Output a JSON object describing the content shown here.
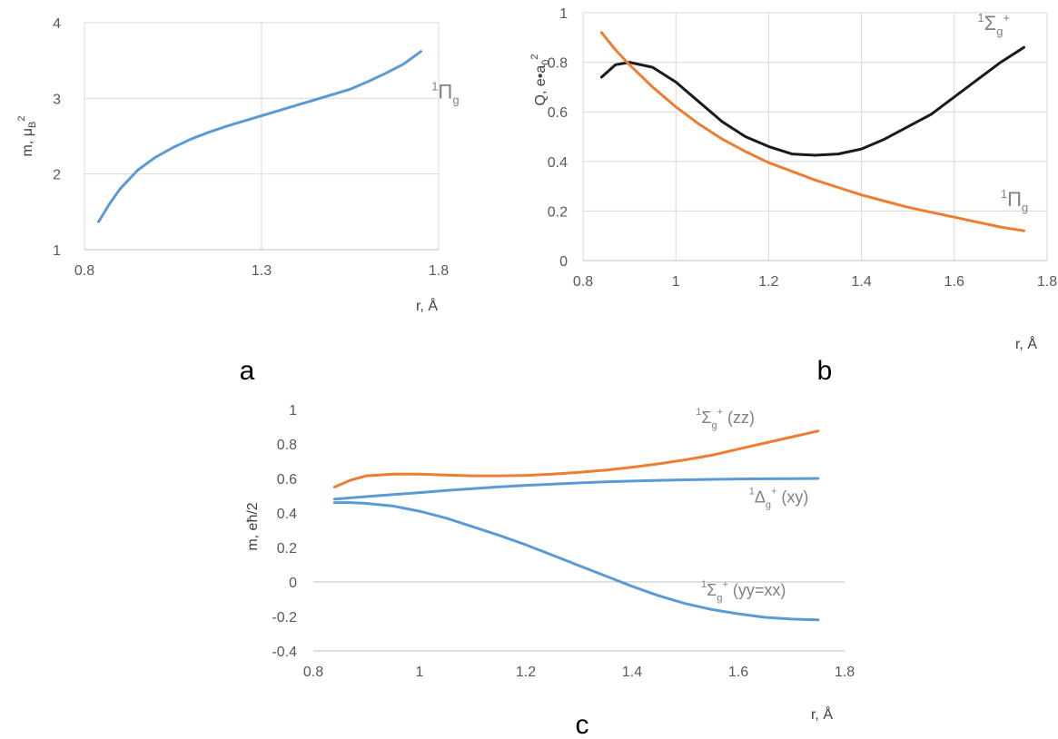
{
  "colors": {
    "blue": "#5b9bd5",
    "orange": "#ed7d31",
    "black": "#1a1a1a",
    "grid": "#d9d9d9",
    "annotation": "#808080"
  },
  "chart_data": [
    {
      "type": "line",
      "panel_label": "a",
      "xlabel": "r, Å",
      "ylabel": "m, μB2",
      "ylabel_parts": {
        "base": "m, μ",
        "sub": "B",
        "sup": "2"
      },
      "xlim": [
        0.8,
        1.8
      ],
      "ylim": [
        1,
        4
      ],
      "xticks": [
        0.8,
        1.3,
        1.8
      ],
      "xtick_labels": [
        "0.8",
        "1.3",
        "1.8"
      ],
      "yticks": [
        1,
        2,
        3,
        4
      ],
      "ytick_labels": [
        "1",
        "2",
        "3",
        "4"
      ],
      "grid": true,
      "series": [
        {
          "name": "1Πg",
          "color": "#5b9bd5",
          "x": [
            0.84,
            0.87,
            0.9,
            0.95,
            1.0,
            1.05,
            1.1,
            1.15,
            1.2,
            1.25,
            1.3,
            1.35,
            1.4,
            1.45,
            1.5,
            1.55,
            1.6,
            1.65,
            1.7,
            1.75
          ],
          "y": [
            1.37,
            1.6,
            1.8,
            2.05,
            2.22,
            2.35,
            2.46,
            2.55,
            2.63,
            2.7,
            2.77,
            2.84,
            2.91,
            2.98,
            3.05,
            3.12,
            3.22,
            3.33,
            3.45,
            3.62
          ]
        }
      ],
      "annotations": [
        {
          "base": "Π",
          "sup": "1",
          "sub": "g",
          "x": 1.78,
          "y": 3.0,
          "series": 0
        }
      ]
    },
    {
      "type": "line",
      "panel_label": "b",
      "xlabel": "r, Å",
      "ylabel": "Q, e•a02",
      "ylabel_parts": {
        "base": "Q, e•a",
        "sub": "0",
        "sup": "2"
      },
      "xlim": [
        0.8,
        1.8
      ],
      "ylim": [
        0,
        1
      ],
      "xticks": [
        0.8,
        1.0,
        1.2,
        1.4,
        1.6,
        1.8
      ],
      "xtick_labels": [
        "0.8",
        "1",
        "1.2",
        "1.4",
        "1.6",
        "1.8"
      ],
      "yticks": [
        0,
        0.2,
        0.4,
        0.6,
        0.8,
        1.0
      ],
      "ytick_labels": [
        "0",
        "0.2",
        "0.4",
        "0.6",
        "0.8",
        "1"
      ],
      "grid": true,
      "series": [
        {
          "name": "1Σg+",
          "color": "#1a1a1a",
          "x": [
            0.84,
            0.87,
            0.9,
            0.95,
            1.0,
            1.05,
            1.1,
            1.15,
            1.2,
            1.25,
            1.3,
            1.35,
            1.4,
            1.45,
            1.5,
            1.55,
            1.6,
            1.65,
            1.7,
            1.75
          ],
          "y": [
            0.74,
            0.79,
            0.8,
            0.78,
            0.72,
            0.64,
            0.56,
            0.5,
            0.46,
            0.43,
            0.425,
            0.43,
            0.45,
            0.49,
            0.54,
            0.59,
            0.66,
            0.73,
            0.8,
            0.86
          ]
        },
        {
          "name": "1Πg",
          "color": "#ed7d31",
          "x": [
            0.84,
            0.87,
            0.9,
            0.95,
            1.0,
            1.05,
            1.1,
            1.15,
            1.2,
            1.25,
            1.3,
            1.35,
            1.4,
            1.45,
            1.5,
            1.55,
            1.6,
            1.65,
            1.7,
            1.75
          ],
          "y": [
            0.92,
            0.85,
            0.79,
            0.7,
            0.62,
            0.55,
            0.49,
            0.44,
            0.395,
            0.36,
            0.325,
            0.295,
            0.265,
            0.24,
            0.215,
            0.195,
            0.175,
            0.155,
            0.135,
            0.12
          ]
        }
      ],
      "annotations": [
        {
          "base": "Σ",
          "sup": "1",
          "sub": "g",
          "sup2": "+",
          "x": 1.65,
          "y": 0.93,
          "series": 0
        },
        {
          "base": "Π",
          "sup": "1",
          "sub": "g",
          "x": 1.7,
          "y": 0.22,
          "series": 1
        }
      ]
    },
    {
      "type": "line",
      "panel_label": "c",
      "xlabel": "r, Å",
      "ylabel": "m, eħ/2",
      "xlim": [
        0.8,
        1.8
      ],
      "ylim": [
        -0.4,
        1
      ],
      "xticks": [
        0.8,
        1.0,
        1.2,
        1.4,
        1.6,
        1.8
      ],
      "xtick_labels": [
        "0.8",
        "1",
        "1.2",
        "1.4",
        "1.6",
        "1.8"
      ],
      "yticks": [
        -0.4,
        -0.2,
        0,
        0.2,
        0.4,
        0.6,
        0.8,
        1.0
      ],
      "ytick_labels": [
        "-0.4",
        "-0.2",
        "0",
        "0.2",
        "0.4",
        "0.6",
        "0.8",
        "1"
      ],
      "grid": false,
      "zero_line": true,
      "series": [
        {
          "name": "1Σg+ (zz)",
          "color": "#ed7d31",
          "x": [
            0.84,
            0.87,
            0.9,
            0.95,
            1.0,
            1.05,
            1.1,
            1.15,
            1.2,
            1.25,
            1.3,
            1.35,
            1.4,
            1.45,
            1.5,
            1.55,
            1.6,
            1.65,
            1.7,
            1.75
          ],
          "y": [
            0.55,
            0.59,
            0.615,
            0.625,
            0.625,
            0.62,
            0.615,
            0.615,
            0.618,
            0.625,
            0.635,
            0.648,
            0.665,
            0.685,
            0.708,
            0.735,
            0.77,
            0.805,
            0.84,
            0.875
          ]
        },
        {
          "name": "1Δg+ (xy)",
          "color": "#5b9bd5",
          "x": [
            0.84,
            0.9,
            0.95,
            1.0,
            1.05,
            1.1,
            1.15,
            1.2,
            1.25,
            1.3,
            1.35,
            1.4,
            1.45,
            1.5,
            1.55,
            1.6,
            1.65,
            1.7,
            1.75
          ],
          "y": [
            0.48,
            0.495,
            0.507,
            0.518,
            0.53,
            0.541,
            0.551,
            0.56,
            0.567,
            0.574,
            0.58,
            0.585,
            0.589,
            0.592,
            0.595,
            0.597,
            0.598,
            0.599,
            0.6
          ]
        },
        {
          "name": "1Σg+ (yy=xx)",
          "color": "#5b9bd5",
          "x": [
            0.84,
            0.87,
            0.9,
            0.95,
            1.0,
            1.05,
            1.1,
            1.15,
            1.2,
            1.25,
            1.3,
            1.35,
            1.4,
            1.45,
            1.5,
            1.55,
            1.6,
            1.65,
            1.7,
            1.75
          ],
          "y": [
            0.46,
            0.46,
            0.455,
            0.44,
            0.41,
            0.37,
            0.32,
            0.27,
            0.215,
            0.155,
            0.095,
            0.035,
            -0.025,
            -0.08,
            -0.125,
            -0.16,
            -0.185,
            -0.205,
            -0.215,
            -0.22
          ]
        }
      ],
      "annotations": [
        {
          "base": "Σ",
          "sup": "1",
          "sub": "g",
          "sup2": "+",
          "tail": " (zz)",
          "x": 1.52,
          "y": 0.92,
          "series": 0
        },
        {
          "base": "Δ",
          "sup": "1",
          "sub": "g",
          "sup2": "+",
          "tail": "  (xy)",
          "x": 1.62,
          "y": 0.46,
          "series": 1
        },
        {
          "base": "Σ",
          "sup": "1",
          "sub": "g",
          "sup2": "+",
          "tail": " (yy=xx)",
          "x": 1.53,
          "y": -0.08,
          "series": 2
        }
      ]
    }
  ]
}
